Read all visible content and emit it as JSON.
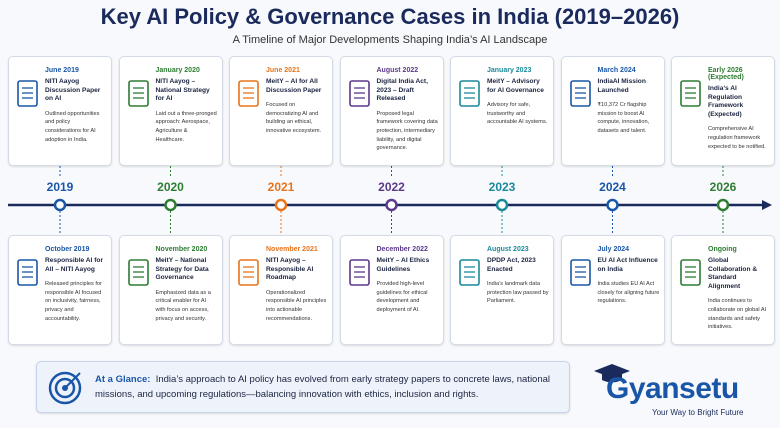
{
  "header": {
    "title": "Key AI Policy & Governance Cases in India (2019–2026)",
    "subtitle": "A Timeline of Major Developments Shaping India’s AI Landscape"
  },
  "top_cards": [
    {
      "date": "June 2019",
      "title": "NITI Aayog Discussion Paper on AI",
      "text": "Outlined opportunities and policy considerations for AI adoption in India."
    },
    {
      "date": "January 2020",
      "title": "NITI Aayog – National Strategy for AI",
      "text": "Laid out a three-pronged approach: Aerospace, Agriculture & Healthcare."
    },
    {
      "date": "June 2021",
      "title": "MeitY – AI for All Discussion Paper",
      "text": "Focused on democratizing AI and building an ethical, innovative ecosystem."
    },
    {
      "date": "August 2022",
      "title": "Digital India Act, 2023 – Draft Released",
      "text": "Proposed legal framework covering data protection, intermediary liability, and digital governance."
    },
    {
      "date": "January 2023",
      "title": "MeitY – Advisory for AI Governance",
      "text": "Advisory for safe, trustworthy and accountable AI systems."
    },
    {
      "date": "March 2024",
      "title": "IndiaAI Mission Launched",
      "text": "₹10,372 Cr flagship mission to boost AI compute, innovation, datasets and talent."
    },
    {
      "date": "Early 2026 (Expected)",
      "title": "India’s AI Regulation Framework (Expected)",
      "text": "Comprehensive AI regulation framework expected to be notified."
    }
  ],
  "years": [
    "2019",
    "2020",
    "2021",
    "2022",
    "2023",
    "2024",
    "2026"
  ],
  "bottom_cards": [
    {
      "date": "October 2019",
      "title": "Responsible AI for All – NITI Aayog",
      "text": "Released principles for responsible AI focused on inclusivity, fairness, privacy and accountability."
    },
    {
      "date": "November 2020",
      "title": "MeitY – National Strategy for Data Governance",
      "text": "Emphasized data as a critical enabler for AI with focus on access, privacy and security."
    },
    {
      "date": "November 2021",
      "title": "NITI Aayog – Responsible AI Roadmap",
      "text": "Operationalized responsible AI principles into actionable recommendations."
    },
    {
      "date": "December 2022",
      "title": "MeitY – AI Ethics Guidelines",
      "text": "Provided high-level guidelines for ethical development and deployment of AI."
    },
    {
      "date": "August 2023",
      "title": "DPDP Act, 2023 Enacted",
      "text": "India’s landmark data protection law passed by Parliament."
    },
    {
      "date": "July 2024",
      "title": "EU AI Act Influence on India",
      "text": "India studies EU AI Act closely for aligning future regulations."
    },
    {
      "date": "Ongoing",
      "title": "Global Collaboration & Standard Alignment",
      "text": "India continues to collaborate on global AI standards and safety initiatives."
    }
  ],
  "summary": {
    "label": "At a Glance:",
    "text": "India’s approach to AI policy has evolved from early strategy papers to concrete laws, national missions, and upcoming regulations—balancing innovation with ethics, inclusion and rights."
  },
  "brand": {
    "name": "Gyansetu",
    "tagline": "Your Way to Bright Future"
  }
}
